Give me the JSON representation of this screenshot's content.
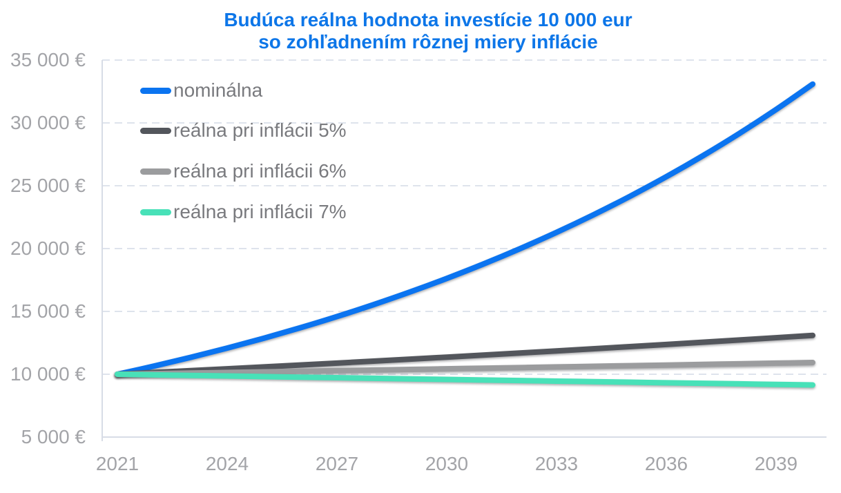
{
  "chart_data": {
    "type": "line",
    "title_line1": "Budúca reálna hodnota investície 10 000 eur",
    "title_line2": "so zohľadnením rôznej miery inflácie",
    "title_color": "#0d76e8",
    "x": [
      2021,
      2022,
      2023,
      2024,
      2025,
      2026,
      2027,
      2028,
      2029,
      2030,
      2031,
      2032,
      2033,
      2034,
      2035,
      2036,
      2037,
      2038,
      2039,
      2040
    ],
    "series": [
      {
        "name": "nominálna",
        "color": "#0b74f0",
        "values": [
          10000,
          10650,
          11342,
          12080,
          12865,
          13701,
          14591,
          15540,
          16550,
          17626,
          18771,
          19992,
          21291,
          22675,
          24149,
          25718,
          27390,
          29170,
          31067,
          33086
        ]
      },
      {
        "name": "reálna pri inflácii 5%",
        "color": "#53565c",
        "values": [
          10000,
          10143,
          10288,
          10435,
          10584,
          10735,
          10888,
          11044,
          11202,
          11362,
          11524,
          11689,
          11856,
          12025,
          12197,
          12371,
          12548,
          12727,
          12909,
          13093
        ]
      },
      {
        "name": "reálna pri inflácii 6%",
        "color": "#9b9c9e",
        "values": [
          10000,
          10047,
          10095,
          10142,
          10190,
          10238,
          10286,
          10335,
          10384,
          10433,
          10482,
          10531,
          10581,
          10631,
          10681,
          10731,
          10782,
          10833,
          10884,
          10935
        ]
      },
      {
        "name": "reálna pri inflácii 7%",
        "color": "#48e1b8",
        "values": [
          10000,
          9953,
          9907,
          9861,
          9814,
          9769,
          9723,
          9677,
          9632,
          9587,
          9542,
          9498,
          9453,
          9409,
          9365,
          9322,
          9278,
          9235,
          9191,
          9148
        ]
      }
    ],
    "xlabel": "",
    "ylabel": "",
    "ylim": [
      5000,
      35000
    ],
    "y_ticks": [
      5000,
      10000,
      15000,
      20000,
      25000,
      30000,
      35000
    ],
    "y_tick_labels": [
      "35 000 €",
      "30 000 €",
      "25 000 €",
      "20 000 €",
      "15 000 €",
      "10 000 €",
      "5 000 €"
    ],
    "x_tick_labels": [
      "2021",
      "2024",
      "2027",
      "2030",
      "2033",
      "2036",
      "2039"
    ],
    "grid": "horizontal-dashed",
    "legend_position": "top-left"
  }
}
